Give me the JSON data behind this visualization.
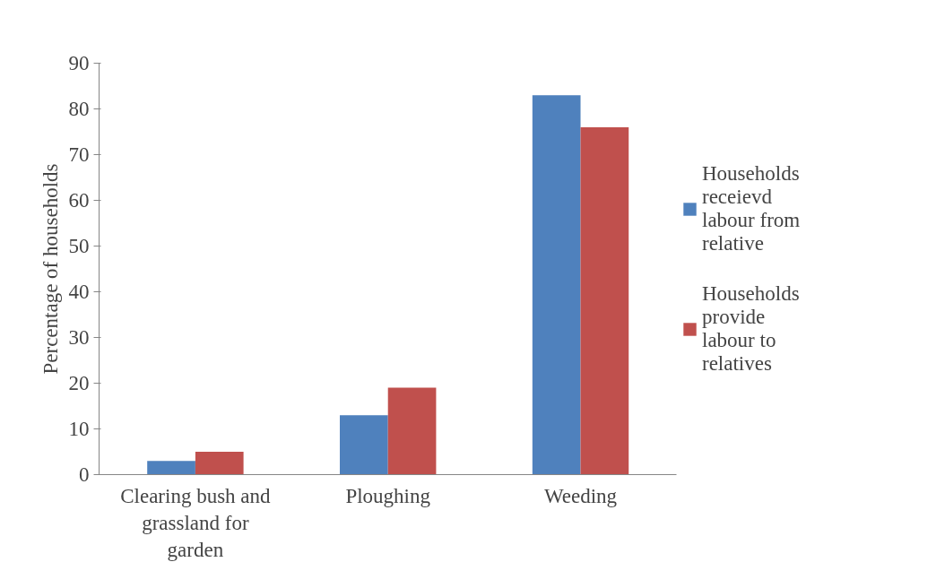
{
  "chart_data": {
    "type": "bar",
    "ylabel": "Percentage of households",
    "categories": [
      "Clearing bush and grassland for garden",
      "Ploughing",
      "Weeding"
    ],
    "series": [
      {
        "name": "Households receievd labour from relative",
        "color": "#4f81bd",
        "values": [
          3,
          13,
          83
        ]
      },
      {
        "name": "Households provide labour to relatives",
        "color": "#c0504d",
        "values": [
          5,
          19,
          76
        ]
      }
    ],
    "ylim": [
      0,
      90
    ],
    "yticks": [
      0,
      10,
      20,
      30,
      40,
      50,
      60,
      70,
      80,
      90
    ],
    "grid": false,
    "legend": "right"
  }
}
